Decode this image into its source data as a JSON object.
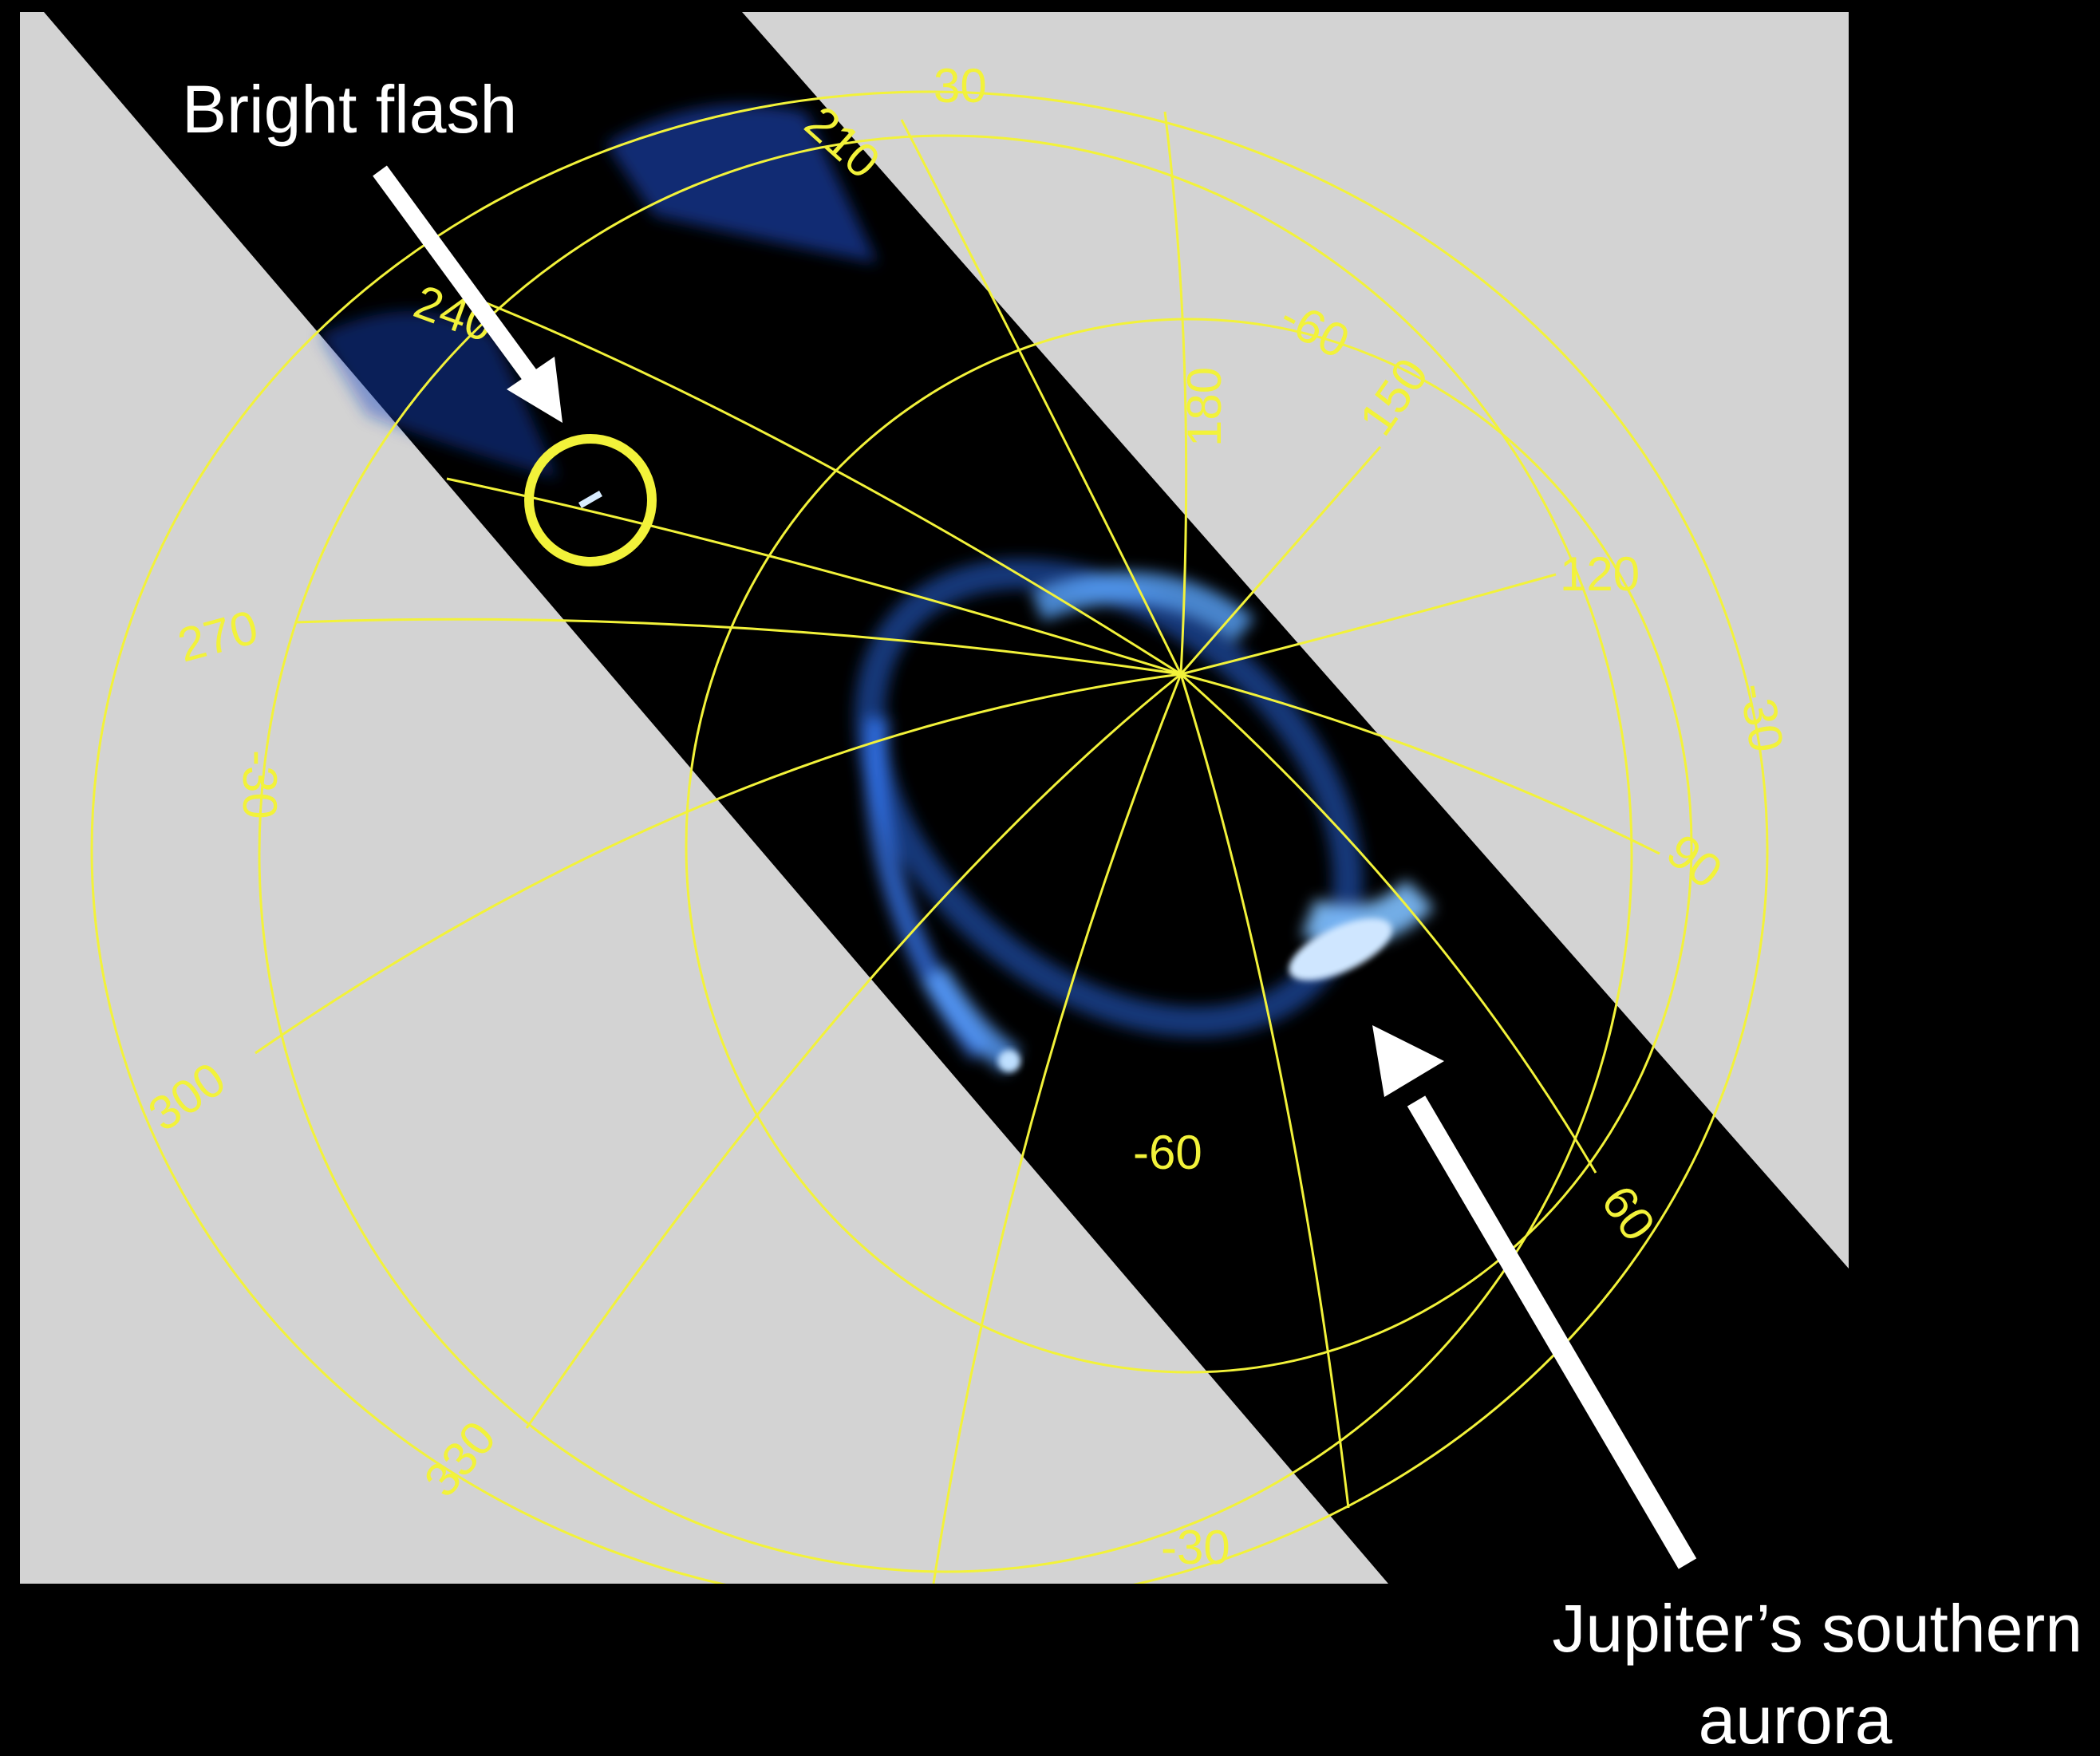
{
  "annotations": {
    "flash_label": "Bright flash",
    "aurora_label_line1": "Jupiter’s southern",
    "aurora_label_line2": "aurora"
  },
  "grid_labels": {
    "lat_top": "30",
    "lon_210": "210",
    "lon_240": "240",
    "lat_inner_top": "-60",
    "lon_180": "180",
    "lon_150": "150",
    "lon_120": "120",
    "lat_right": "-30",
    "lon_270": "270",
    "lat_left": "-30",
    "lon_90": "90",
    "lon_300": "300",
    "lat_inner_bottom": "-60",
    "lon_60": "60",
    "lon_330": "330",
    "lat_bottom": "-30"
  },
  "colors": {
    "background": "#000000",
    "masked_region": "#d3d3d3",
    "grid": "#f2f23a",
    "aurora": "#3b8cff",
    "arrow": "#ffffff"
  }
}
